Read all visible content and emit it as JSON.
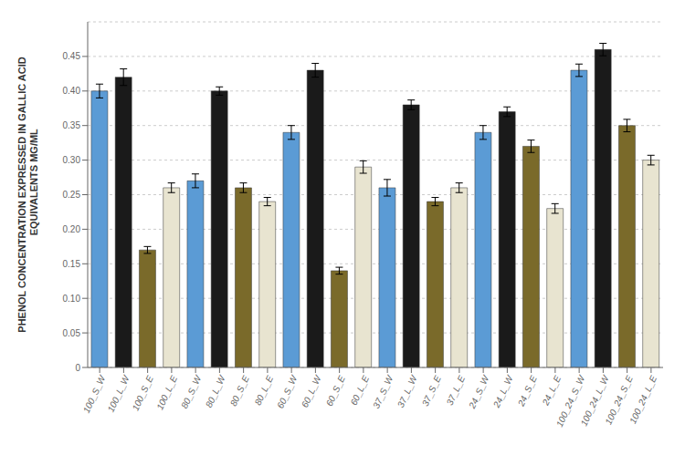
{
  "chart_data": {
    "type": "bar",
    "ylabel": "PHENOL CONCENTRATION EXPRESSED IN GALLIC ACID\n         EQUIVALENTS MG/ML",
    "categories": [
      "100_S_W",
      "100_L_W",
      "100_S_E",
      "100_L_E",
      "80_S_W",
      "80_L_W",
      "80_S_E",
      "80_L_E",
      "60_S_W",
      "60_L_W",
      "60_S_E",
      "60_L_E",
      "37_S_W",
      "37_L_W",
      "37_S_E",
      "37_L_E",
      "24_S_W",
      "24_L_W",
      "24_S_E",
      "24_L_E",
      "100_24_S_W",
      "100_24_L_W",
      "100_24_S_E",
      "100_24_L_E"
    ],
    "values": [
      0.4,
      0.42,
      0.17,
      0.26,
      0.27,
      0.4,
      0.26,
      0.24,
      0.34,
      0.43,
      0.14,
      0.29,
      0.26,
      0.38,
      0.24,
      0.26,
      0.34,
      0.37,
      0.32,
      0.23,
      0.43,
      0.46,
      0.35,
      0.3
    ],
    "errors": [
      0.01,
      0.012,
      0.005,
      0.007,
      0.01,
      0.006,
      0.007,
      0.006,
      0.01,
      0.01,
      0.005,
      0.009,
      0.012,
      0.007,
      0.006,
      0.007,
      0.01,
      0.007,
      0.009,
      0.007,
      0.009,
      0.009,
      0.009,
      0.007
    ],
    "colors": [
      "#5b9bd5",
      "#1a1a1a",
      "#7a6a2a",
      "#e8e4d0",
      "#5b9bd5",
      "#1a1a1a",
      "#7a6a2a",
      "#e8e4d0",
      "#5b9bd5",
      "#1a1a1a",
      "#7a6a2a",
      "#e8e4d0",
      "#5b9bd5",
      "#1a1a1a",
      "#7a6a2a",
      "#e8e4d0",
      "#5b9bd5",
      "#1a1a1a",
      "#7a6a2a",
      "#e8e4d0",
      "#5b9bd5",
      "#1a1a1a",
      "#7a6a2a",
      "#e8e4d0"
    ],
    "ylim": [
      0,
      0.5
    ],
    "yticks": [
      0,
      0.05,
      {
        "value": 0.1,
        "label": "0.10"
      },
      0.15,
      {
        "value": 0.2,
        "label": "0.20"
      },
      0.25,
      {
        "value": 0.3,
        "label": "0.30"
      },
      0.35,
      {
        "value": 0.4,
        "label": "0.40"
      },
      0.45
    ],
    "grid": true
  }
}
